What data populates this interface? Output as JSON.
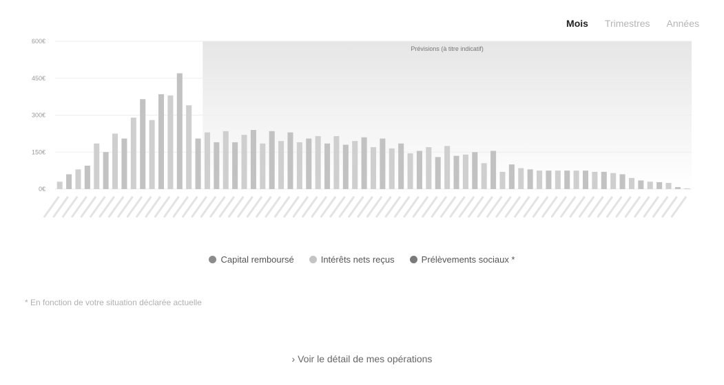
{
  "tabs": [
    {
      "label": "Mois",
      "active": true
    },
    {
      "label": "Trimestres",
      "active": false
    },
    {
      "label": "Années",
      "active": false
    }
  ],
  "legend": [
    {
      "label": "Capital remboursé",
      "color": "#8c8c8c"
    },
    {
      "label": "Intérêts nets reçus",
      "color": "#c4c4c4"
    },
    {
      "label": "Prélèvements sociaux *",
      "color": "#7a7a7a"
    }
  ],
  "footnote": "* En fonction de votre situation déclarée actuelle",
  "detail_link": "› Voir le détail de mes opérations",
  "chart_data": {
    "type": "bar",
    "ylabels": [
      "0€",
      "150€",
      "300€",
      "450€",
      "600€"
    ],
    "yticks": [
      0,
      150,
      300,
      450,
      600
    ],
    "ylim": [
      0,
      600
    ],
    "grid": true,
    "forecast_label": "Prévisions (à titre indicatif)",
    "forecast_start_index": 16,
    "values": [
      30,
      60,
      80,
      95,
      185,
      150,
      225,
      205,
      290,
      365,
      280,
      385,
      380,
      470,
      340,
      205,
      230,
      190,
      235,
      190,
      220,
      240,
      185,
      235,
      195,
      230,
      190,
      205,
      215,
      185,
      215,
      180,
      195,
      210,
      170,
      205,
      165,
      185,
      145,
      155,
      170,
      130,
      175,
      135,
      140,
      150,
      105,
      155,
      70,
      100,
      85,
      80,
      75,
      75,
      75,
      75,
      75,
      75,
      70,
      70,
      65,
      60,
      45,
      35,
      30,
      28,
      25,
      8,
      3
    ]
  }
}
